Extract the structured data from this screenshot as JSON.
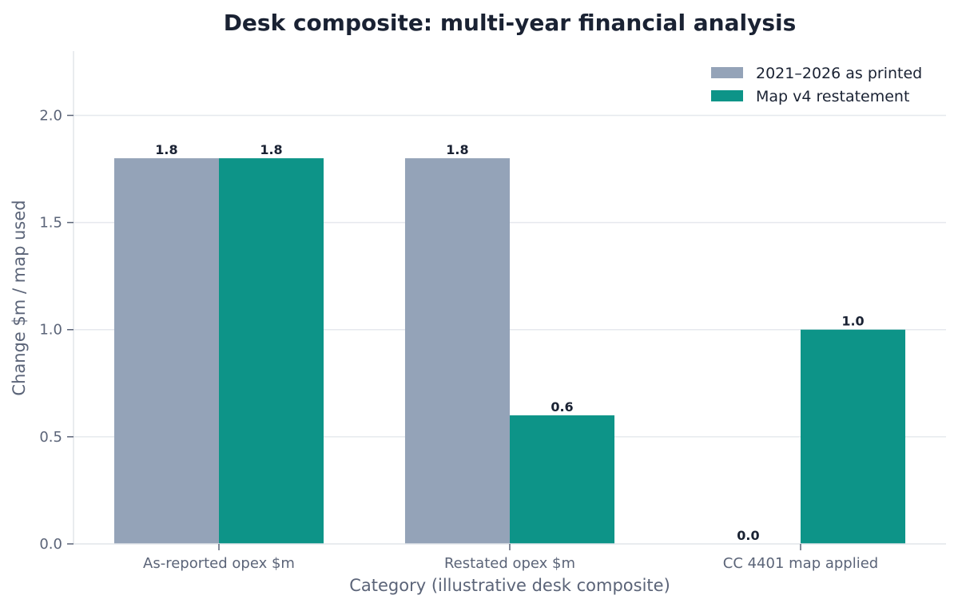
{
  "chart_data": {
    "type": "bar",
    "title": "Desk composite: multi-year financial analysis",
    "xlabel": "Category (illustrative desk composite)",
    "ylabel": "Change $m / map used",
    "categories": [
      "As-reported opex $m",
      "Restated opex $m",
      "CC 4401 map applied"
    ],
    "series": [
      {
        "name": "2021–2026 as printed",
        "color": "#94a3b8",
        "values": [
          1.8,
          1.8,
          0.0
        ],
        "labels": [
          "1.8",
          "1.8",
          "0.0"
        ]
      },
      {
        "name": "Map v4 restatement",
        "color": "#0d9488",
        "values": [
          1.8,
          0.6,
          1.0
        ],
        "labels": [
          "1.8",
          "0.6",
          "1.0"
        ]
      }
    ],
    "ylim": [
      0,
      2.3
    ],
    "yticks": [
      0.0,
      0.5,
      1.0,
      1.5,
      2.0
    ],
    "ytick_labels": [
      "0.0",
      "0.5",
      "1.0",
      "1.5",
      "2.0"
    ],
    "grid": "horizontal",
    "legend_position": "top-right"
  }
}
